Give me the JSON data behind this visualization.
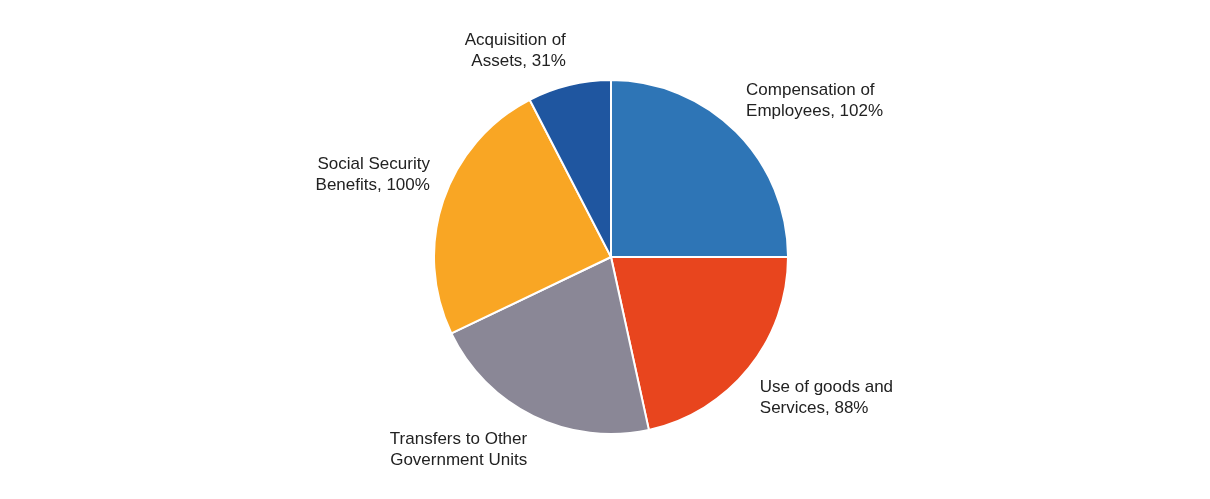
{
  "chart_data": {
    "type": "pie",
    "categories": [
      "Compensation of Employees",
      "Use of goods and Services",
      "Transfers to Other Government Units",
      "Social Security Benefits",
      "Acquisition of Assets"
    ],
    "values": [
      102,
      88,
      87,
      100,
      31
    ],
    "value_labels": [
      "102%",
      "88%",
      null,
      "100%",
      "31%"
    ],
    "colors": [
      "#2e75b6",
      "#e8451e",
      "#8a8796",
      "#f9a624",
      "#1f56a0"
    ],
    "legend": false
  }
}
